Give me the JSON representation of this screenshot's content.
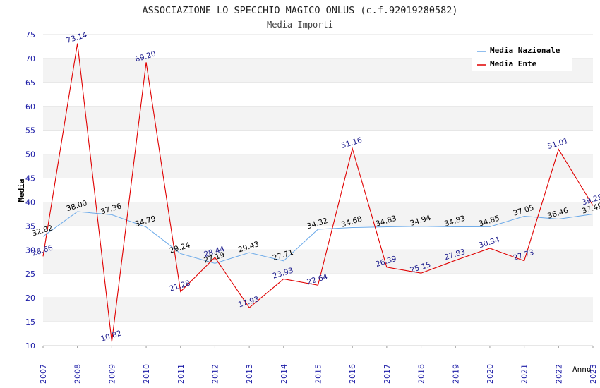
{
  "chart_data": {
    "type": "line",
    "title": "ASSOCIAZIONE LO SPECCHIO MAGICO ONLUS (c.f.92019280582)",
    "subtitle": "Media Importi",
    "xlabel": "Anno",
    "ylabel": "Media",
    "ylim": [
      10,
      75
    ],
    "y_ticks": [
      "10",
      "15",
      "20",
      "25",
      "30",
      "35",
      "40",
      "45",
      "50",
      "55",
      "60",
      "65",
      "70",
      "75"
    ],
    "categories": [
      "2007",
      "2008",
      "2009",
      "2010",
      "2011",
      "2012",
      "2013",
      "2014",
      "2015",
      "2016",
      "2017",
      "2018",
      "2019",
      "2020",
      "2021",
      "2022",
      "2023"
    ],
    "grid": "horizontal-bands",
    "legend_position": "top-right",
    "series": [
      {
        "name": "Media Nazionale",
        "color": "#6aa9e9",
        "label_color": "#000000",
        "values": [
          32.82,
          38.0,
          37.36,
          34.79,
          29.24,
          27.19,
          29.43,
          27.71,
          34.32,
          34.68,
          34.83,
          34.94,
          34.83,
          34.85,
          37.05,
          36.46,
          37.49
        ],
        "labels": [
          "32.82",
          "38.00",
          "37.36",
          "34.79",
          "29.24",
          "27.19",
          "29.43",
          "27.71",
          "34.32",
          "34.68",
          "34.83",
          "34.94",
          "34.83",
          "34.85",
          "37.05",
          "36.46",
          "37.49"
        ]
      },
      {
        "name": "Media Ente",
        "color": "#e00000",
        "label_color": "#1a1a8c",
        "values": [
          28.66,
          73.14,
          10.82,
          69.2,
          21.28,
          28.44,
          17.93,
          23.93,
          22.64,
          51.16,
          26.39,
          25.15,
          27.83,
          30.34,
          27.73,
          51.01,
          39.28
        ],
        "labels": [
          "28.66",
          "73.14",
          "10.82",
          "69.20",
          "21.28",
          "28.44",
          "17.93",
          "23.93",
          "22.64",
          "51.16",
          "26.39",
          "25.15",
          "27.83",
          "30.34",
          "27.73",
          "51.01",
          "39.28"
        ]
      }
    ]
  }
}
